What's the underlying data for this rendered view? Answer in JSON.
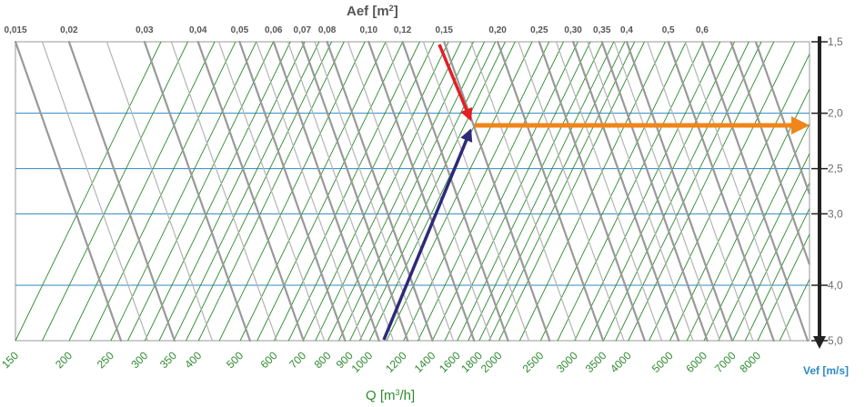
{
  "chart_data": {
    "type": "nomogram",
    "title_top": "Aef [m",
    "title_top_sup": "2",
    "title_top_end": "]",
    "xlabel": "Q [m",
    "xlabel_sup": "3",
    "xlabel_end": "/h]",
    "ylabel": "Vef [m/s]",
    "aef_ticks": [
      "0,015",
      "0,02",
      "0,03",
      "0,04",
      "0,05",
      "0,06",
      "0,07",
      "0,08",
      "0,10",
      "0,12",
      "0,15",
      "0,20",
      "0,25",
      "0,30",
      "0,35",
      "0,4",
      "0,5",
      "0,6"
    ],
    "aef_values": [
      0.015,
      0.02,
      0.03,
      0.04,
      0.05,
      0.06,
      0.07,
      0.08,
      0.1,
      0.12,
      0.15,
      0.2,
      0.25,
      0.3,
      0.35,
      0.4,
      0.5,
      0.6
    ],
    "q_ticks": [
      "150",
      "200",
      "250",
      "300",
      "350",
      "400",
      "500",
      "600",
      "700",
      "800",
      "900",
      "1000",
      "1200",
      "1400",
      "1600",
      "1800",
      "2000",
      "2500",
      "3000",
      "3500",
      "4000",
      "5000",
      "6000",
      "7000",
      "8000"
    ],
    "q_values": [
      150,
      200,
      250,
      300,
      350,
      400,
      500,
      600,
      700,
      800,
      900,
      1000,
      1200,
      1400,
      1600,
      1800,
      2000,
      2500,
      3000,
      3500,
      4000,
      5000,
      6000,
      7000,
      8000
    ],
    "v_ticks": [
      "1,5",
      "2,0",
      "2,5",
      "3,0",
      "4,0",
      "5,0"
    ],
    "v_values": [
      1.5,
      2.0,
      2.5,
      3.0,
      4.0,
      5.0
    ],
    "example": {
      "aef": 0.15,
      "q": 1100,
      "v_result": 2.1
    },
    "colors": {
      "aef_lines": "#999999",
      "q_lines": "#2e8b2e",
      "v_lines": "#2d8ac8",
      "arrow_aef": "#e31e24",
      "arrow_q": "#2e2a78",
      "arrow_v": "#f08519",
      "axis": "#222222"
    }
  }
}
